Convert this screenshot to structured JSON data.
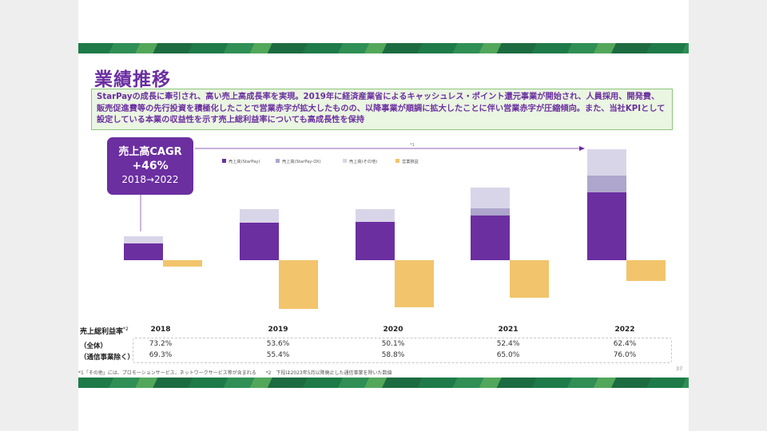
{
  "slide": {
    "title": "業績推移",
    "summary": "StarPayの成長に牽引され、高い売上高成長率を実現。2019年に経済産業省によるキャッシュレス・ポイント還元事業が開始され、人員採用、開発費、販売促進費等の先行投資を積極化したことで営業赤字が拡大したものの、以降事業が順調に拡大したことに伴い営業赤字が圧縮傾向。また、当社KPIとして設定している本業の収益性を示す売上総利益率についても高成長性を保持",
    "cagr": {
      "line1": "売上高CAGR",
      "line2": "+46%",
      "line3": "2018→2022"
    },
    "arrow_note": "*1",
    "page_number": "37",
    "footnote1": "*1「その他」には、プロモーションサービス、ネットワークサービス等が含まれる",
    "footnote2": "*2　下段は2023年5月以降廃止した通信事業を除いた数値"
  },
  "colors": {
    "starpay": "#6b2fa0",
    "starpay_ox": "#aea6cc",
    "other": "#d9d5e9",
    "op": "#f2c46b",
    "band": "#1e7a48"
  },
  "chart_data": {
    "type": "bar",
    "stacked": true,
    "categories": [
      "2018",
      "2019",
      "2020",
      "2021",
      "2022"
    ],
    "series": [
      {
        "name": "売上高(StarPay)",
        "values": [
          2.1,
          4.7,
          4.8,
          5.6,
          8.5
        ]
      },
      {
        "name": "売上高(StarPay-OX)",
        "values": [
          0.0,
          0.0,
          0.0,
          0.9,
          2.1
        ]
      },
      {
        "name": "売上高(その他)",
        "values": [
          0.9,
          1.7,
          1.6,
          2.6,
          3.3
        ]
      },
      {
        "name": "営業損益",
        "values": [
          -0.8,
          -6.1,
          -5.9,
          -4.7,
          -2.6
        ]
      }
    ],
    "legend_position": "top-center",
    "grid": false,
    "axes_visible": false,
    "ylim": [
      -6.5,
      14.0
    ]
  },
  "table": {
    "header": "売上総利益率",
    "header_sup": "*2",
    "row1_label": "（全体）",
    "row2_label": "（通信事業除く）",
    "row1": [
      "73.2%",
      "53.6%",
      "50.1%",
      "52.4%",
      "62.4%"
    ],
    "row2": [
      "69.3%",
      "55.4%",
      "58.8%",
      "65.0%",
      "76.0%"
    ]
  }
}
